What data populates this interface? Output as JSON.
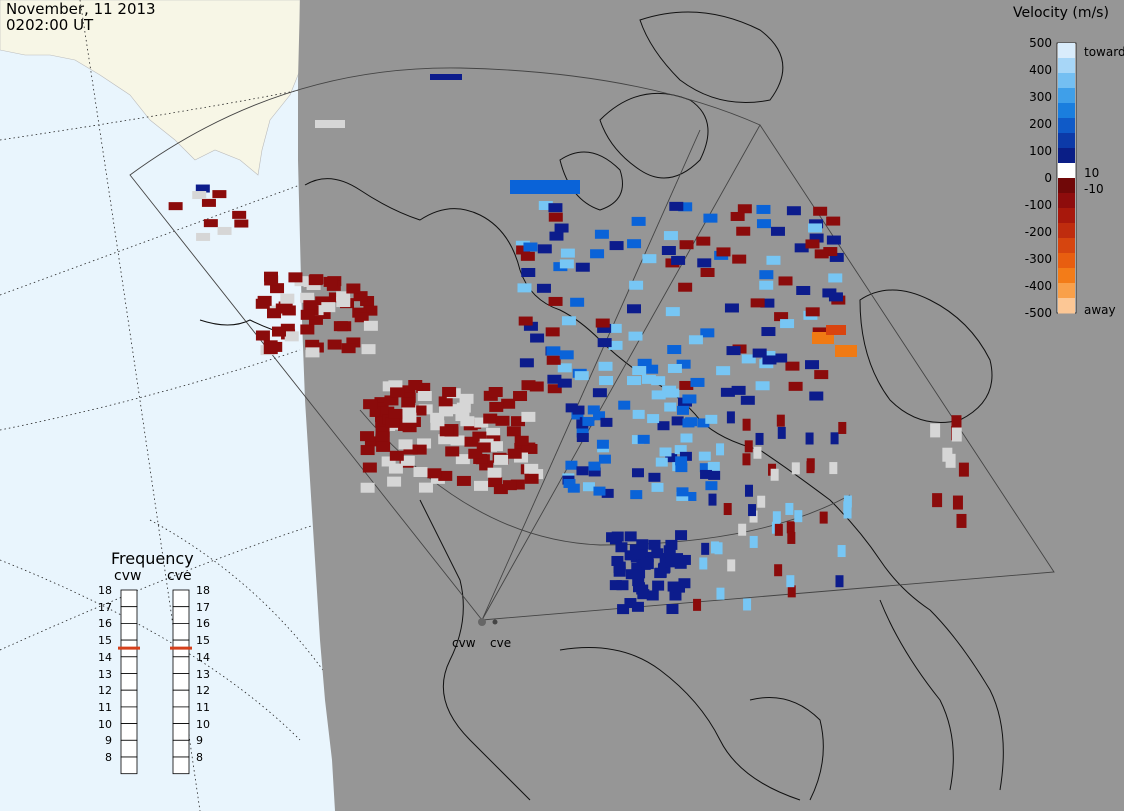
{
  "header": {
    "date": "November, 11 2013",
    "time": "0202:00 UT"
  },
  "colorbar": {
    "title": "Velocity (m/s)",
    "ticks": [
      "500",
      "400",
      "300",
      "200",
      "100",
      "0",
      "-100",
      "-200",
      "-300",
      "-400",
      "-500"
    ],
    "pos_small": "10",
    "neg_small": "-10",
    "top_label": "toward",
    "bottom_label": "away"
  },
  "frequency_panel": {
    "title": "Frequency",
    "radars": [
      {
        "name": "cvw",
        "freq_mhz": 15
      },
      {
        "name": "cve",
        "freq_mhz": 15
      }
    ],
    "scale": [
      "18",
      "17",
      "16",
      "15",
      "14",
      "13",
      "12",
      "11",
      "10",
      "9",
      "8"
    ]
  },
  "radar_labels": {
    "west": "cvw",
    "east": "cve"
  },
  "colors": {
    "ocean": "#e9f5fd",
    "land_bg": "#f7f6e6",
    "night_gray": "#969696",
    "toward_dark": "#0c1c8c",
    "toward_mid": "#0a63d8",
    "toward_light": "#77c6f4",
    "away_dark": "#8b0b0b",
    "away_orange": "#f07a14",
    "ground_scatter": "#d6d6d6",
    "frequency_marker": "#d5401c"
  }
}
